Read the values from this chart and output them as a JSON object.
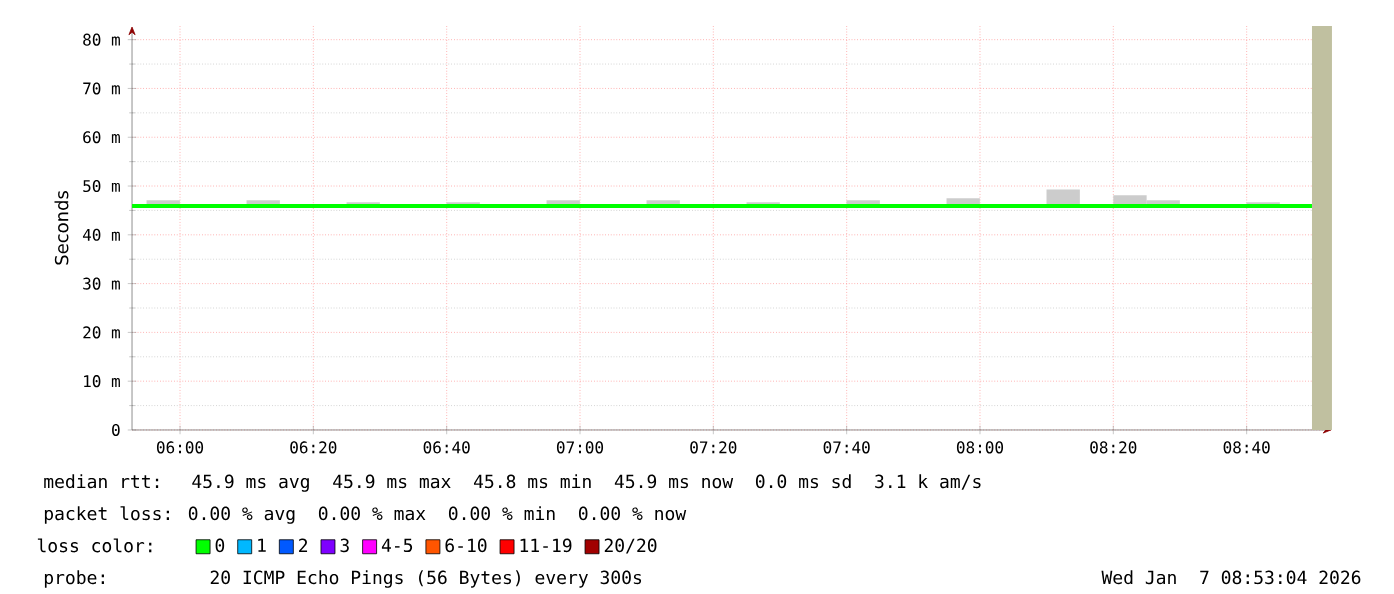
{
  "chart_data": {
    "type": "line",
    "ylabel": "Seconds",
    "legend_title": "loss color:",
    "legend": "bottom",
    "grid": true,
    "xlim": [
      5.88,
      8.88
    ],
    "ylim": [
      0,
      82.8
    ],
    "xticks": [
      {
        "value": 6,
        "label": "06:00"
      },
      {
        "value": 6.3333,
        "label": "06:20"
      },
      {
        "value": 6.6667,
        "label": "06:40"
      },
      {
        "value": 7,
        "label": "07:00"
      },
      {
        "value": 7.3333,
        "label": "07:20"
      },
      {
        "value": 7.6667,
        "label": "07:40"
      },
      {
        "value": 8,
        "label": "08:00"
      },
      {
        "value": 8.3333,
        "label": "08:20"
      },
      {
        "value": 8.6667,
        "label": "08:40"
      }
    ],
    "yticks": [
      0,
      {
        "value": 10,
        "label": "10 m"
      },
      {
        "value": 20,
        "label": "20 m"
      },
      {
        "value": 30,
        "label": "30 m"
      },
      {
        "value": 40,
        "label": "40 m"
      },
      {
        "value": 50,
        "label": "50 m"
      },
      {
        "value": 60,
        "label": "60 m"
      },
      {
        "value": 70,
        "label": "70 m"
      },
      {
        "value": 80,
        "label": "80 m"
      }
    ],
    "bands": [
      {
        "axis": "x",
        "from": 8.83,
        "to": 8.88,
        "color": "#c0c0a0"
      }
    ],
    "series": [
      {
        "type": "bar",
        "color": "#cccccc",
        "x": [
          5.958,
          6.208,
          6.458,
          6.708,
          6.958,
          7.208,
          7.458,
          7.708,
          7.958,
          8.042,
          8.208,
          8.375,
          8.458,
          8.708
        ],
        "base": [
          45.9,
          45.9,
          45.9,
          45.9,
          45.9,
          45.9,
          45.9,
          45.9,
          45.9,
          45.9,
          45.9,
          45.9,
          45.9,
          45.9
        ],
        "values": [
          1.2,
          1.2,
          0.8,
          0.8,
          1.2,
          1.2,
          0.8,
          1.2,
          1.6,
          0.4,
          3.4,
          2.2,
          1.2,
          0.8
        ]
      },
      {
        "name": "0",
        "color": "#00ff00",
        "x": [
          5.88,
          8.83
        ],
        "values": [
          45.9,
          45.9
        ]
      },
      {
        "name": "1",
        "color": "#00b8ff"
      },
      {
        "name": "2",
        "color": "#0059ff"
      },
      {
        "name": "3",
        "color": "#7e00ff"
      },
      {
        "name": "4-5",
        "color": "#ff00ff"
      },
      {
        "name": "6-10",
        "color": "#ff5500"
      },
      {
        "name": "11-19",
        "color": "#ff0000"
      },
      {
        "name": "20/20",
        "color": "#a10000"
      }
    ],
    "annotations": [
      "median rtt:  45.9 ms avg  45.9 ms max  45.8 ms min  45.9 ms now  0.0 ms sd  3.1 k am/s",
      "packet loss: 0.00 % avg  0.00 % max  0.00 % min  0.00 % now",
      "probe:       20 ICMP Echo Pings (56 Bytes) every 300s",
      "Wed Jan  7 08:53:04 2026"
    ]
  }
}
